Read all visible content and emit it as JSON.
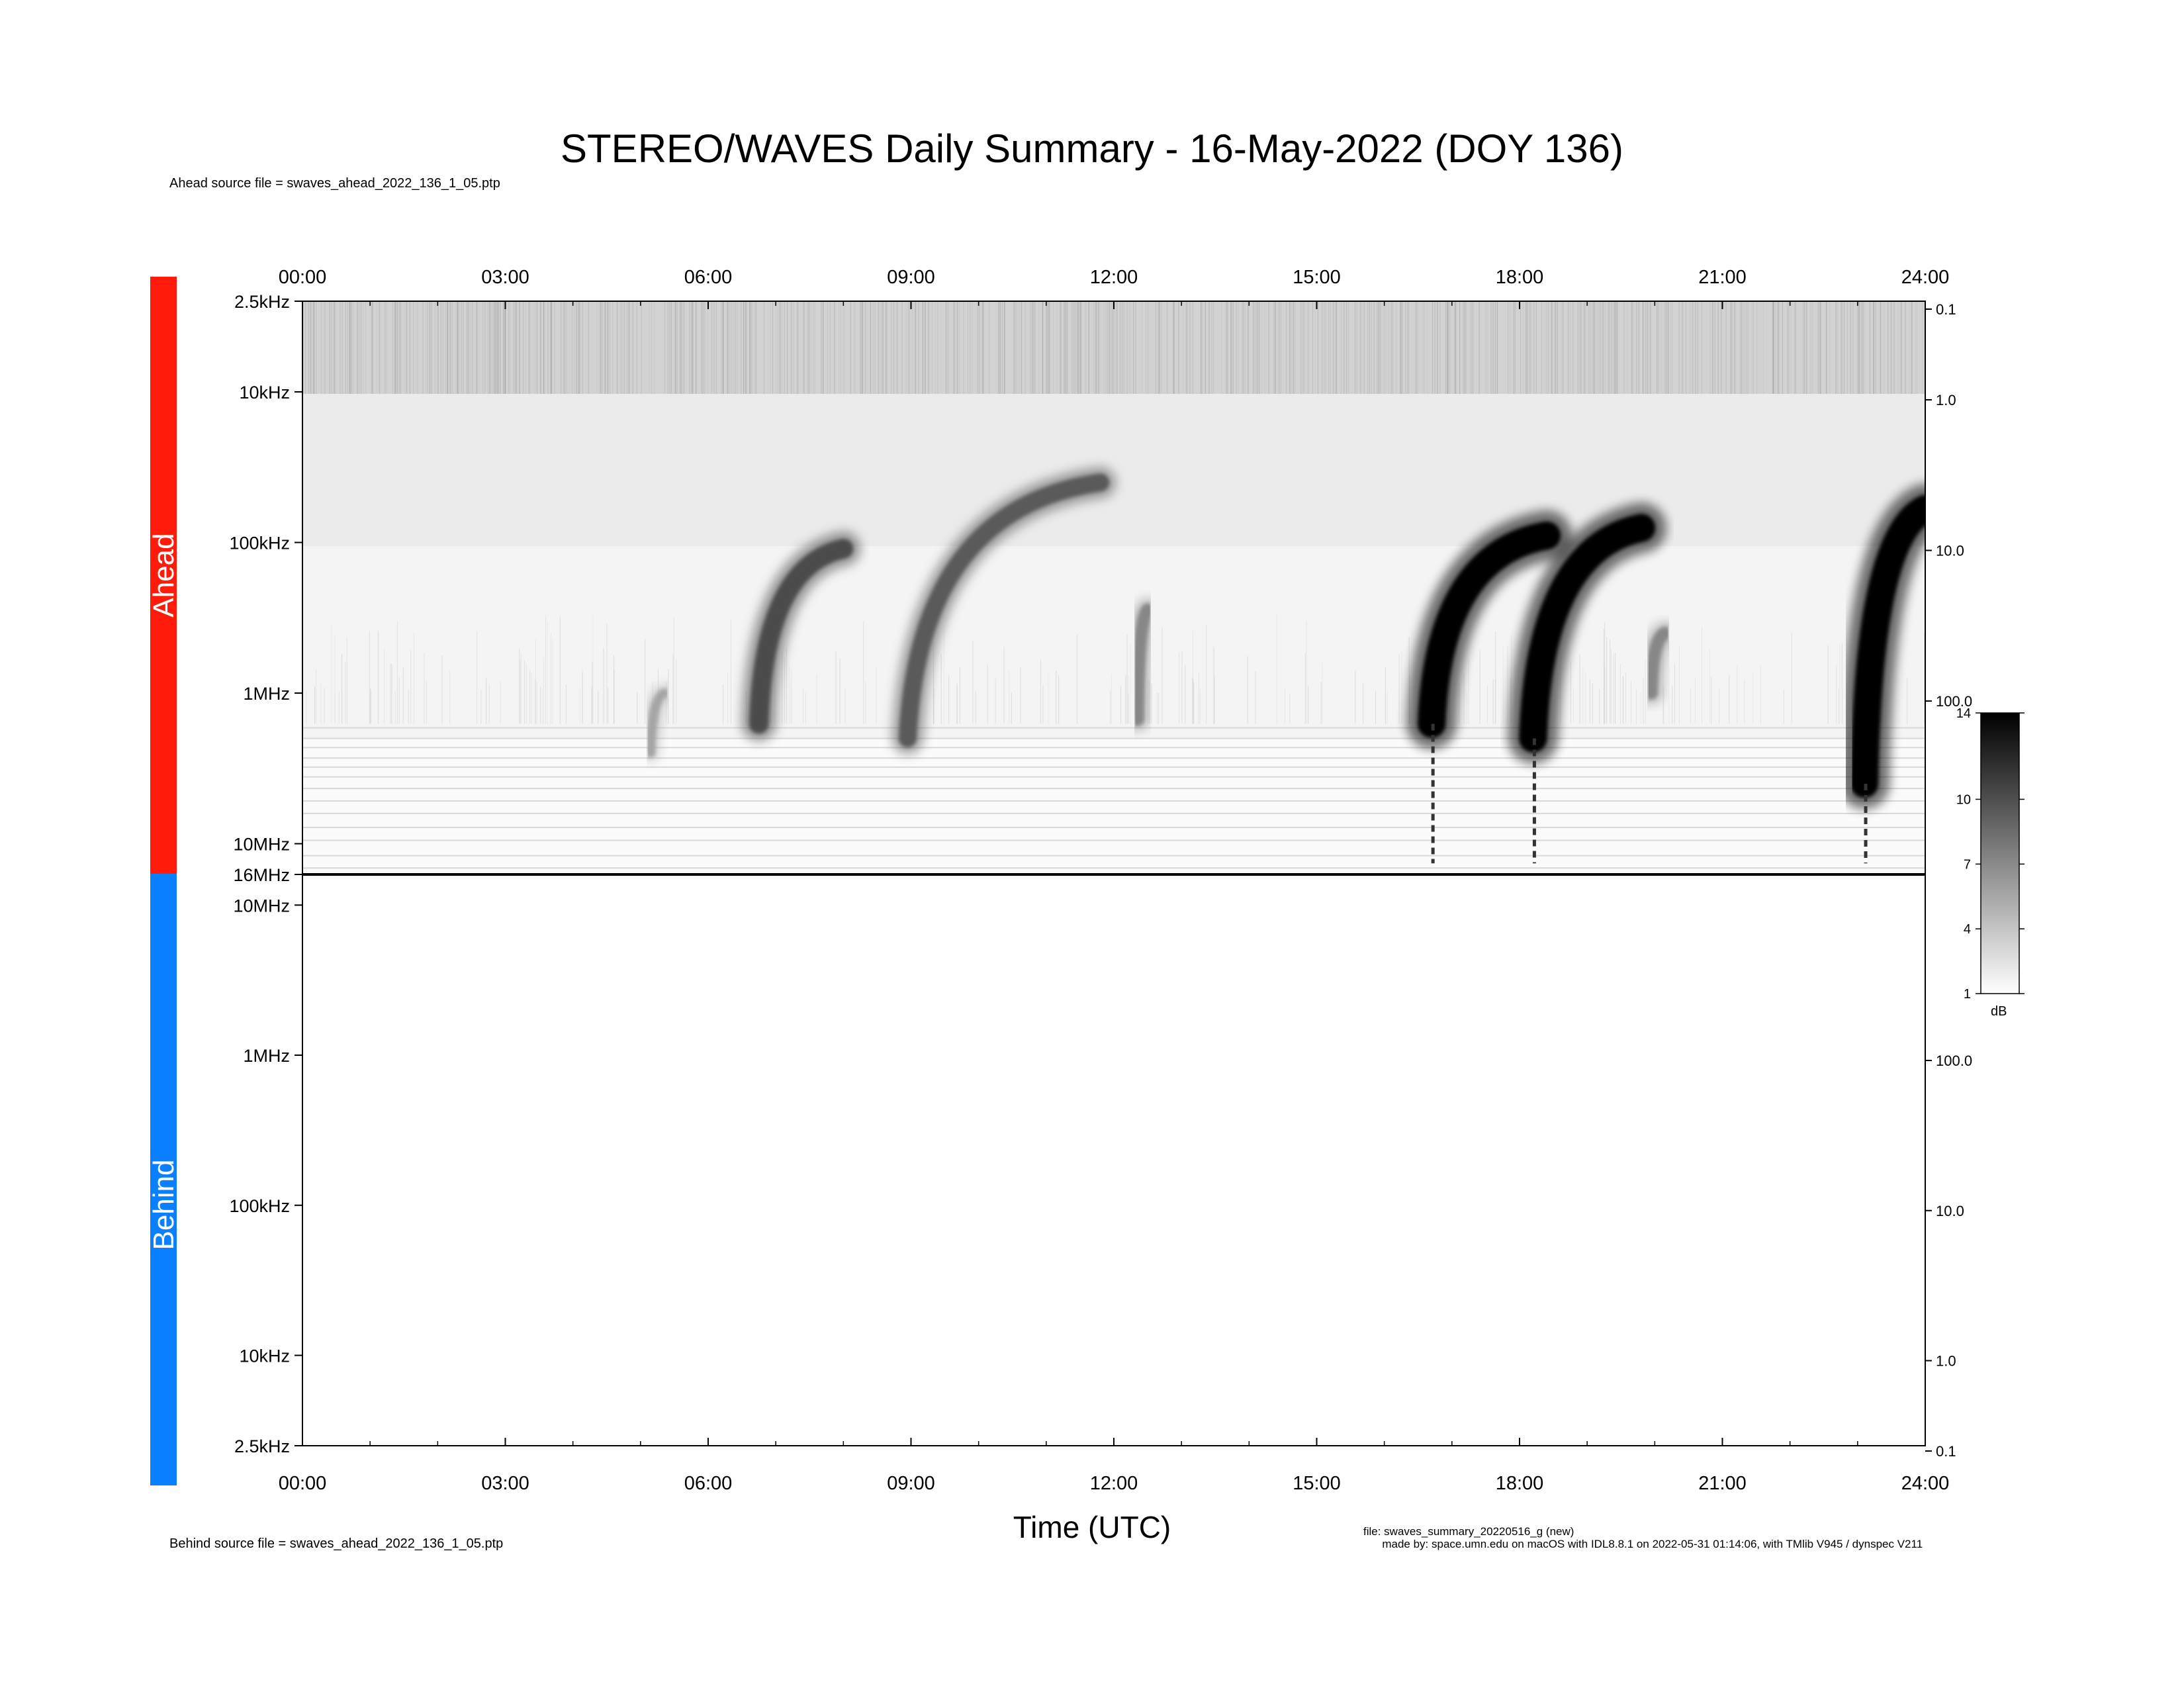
{
  "title": "STEREO/WAVES Daily Summary - 16-May-2022 (DOY 136)",
  "ahead_source": "Ahead source file = swaves_ahead_2022_136_1_05.ptp",
  "behind_source": "Behind source file = swaves_ahead_2022_136_1_05.ptp",
  "file_info": {
    "line1": "file: swaves_summary_20220516_g (new)",
    "line2": "made by: space.umn.edu on macOS with IDL8.8.1 on 2022-05-31 01:14:06, with TMlib V945 / dynspec V211"
  },
  "colors": {
    "ahead": "#ff1a0a",
    "behind": "#0a7fff",
    "burst": "#000000",
    "background": "#ffffff"
  },
  "chart_data": [
    {
      "type": "heatmap",
      "panel": "Ahead",
      "panel_label": "Ahead",
      "xlabel": "Time (UTC)",
      "x_ticks": [
        "00:00",
        "03:00",
        "06:00",
        "09:00",
        "12:00",
        "15:00",
        "18:00",
        "21:00",
        "24:00"
      ],
      "xlim_hours": [
        0,
        24
      ],
      "y_scale": "log",
      "y_ticks_left": [
        "2.5kHz",
        "10kHz",
        "100kHz",
        "1MHz",
        "10MHz",
        "16MHz"
      ],
      "y_ticks_left_khz": [
        2.5,
        10,
        100,
        1000,
        10000,
        16000
      ],
      "ylim_khz": [
        2.5,
        16000
      ],
      "y_ticks_right": [
        "0.1",
        "1.0",
        "10.0",
        "100.0"
      ],
      "colorbar": {
        "label": "dB",
        "ticks": [
          "1",
          "4",
          "7",
          "10",
          "14"
        ],
        "range": [
          1,
          14
        ]
      },
      "radio_bursts": [
        {
          "start_hour": 5.15,
          "start_freq_khz": 2500,
          "end_hour": 5.35,
          "end_freq_khz": 1000,
          "intensity": 3
        },
        {
          "start_hour": 6.75,
          "start_freq_khz": 1600,
          "end_hour": 8.0,
          "end_freq_khz": 110,
          "intensity": 9
        },
        {
          "start_hour": 8.95,
          "start_freq_khz": 2000,
          "end_hour": 11.8,
          "end_freq_khz": 40,
          "intensity": 8
        },
        {
          "start_hour": 12.35,
          "start_freq_khz": 1500,
          "end_hour": 12.5,
          "end_freq_khz": 280,
          "intensity": 5
        },
        {
          "start_hour": 16.7,
          "start_freq_khz": 1600,
          "end_hour": 18.4,
          "end_freq_khz": 90,
          "intensity": 14
        },
        {
          "start_hour": 18.2,
          "start_freq_khz": 2000,
          "end_hour": 19.8,
          "end_freq_khz": 80,
          "intensity": 14
        },
        {
          "start_hour": 19.95,
          "start_freq_khz": 1000,
          "end_hour": 20.15,
          "end_freq_khz": 400,
          "intensity": 5
        },
        {
          "start_hour": 23.1,
          "start_freq_khz": 4000,
          "end_hour": 24.0,
          "end_freq_khz": 60,
          "intensity": 14
        }
      ]
    },
    {
      "type": "heatmap",
      "panel": "Behind",
      "panel_label": "Behind",
      "xlabel": "Time (UTC)",
      "x_ticks": [
        "00:00",
        "03:00",
        "06:00",
        "09:00",
        "12:00",
        "15:00",
        "18:00",
        "21:00",
        "24:00"
      ],
      "xlim_hours": [
        0,
        24
      ],
      "y_scale": "log",
      "y_ticks_left": [
        "10MHz",
        "1MHz",
        "100kHz",
        "10kHz",
        "2.5kHz"
      ],
      "y_ticks_left_khz": [
        10000,
        1000,
        100,
        10,
        2.5
      ],
      "ylim_khz": [
        2.5,
        16000
      ],
      "y_ticks_right": [
        "100.0",
        "10.0",
        "1.0",
        "0.1"
      ],
      "radio_bursts": []
    }
  ]
}
